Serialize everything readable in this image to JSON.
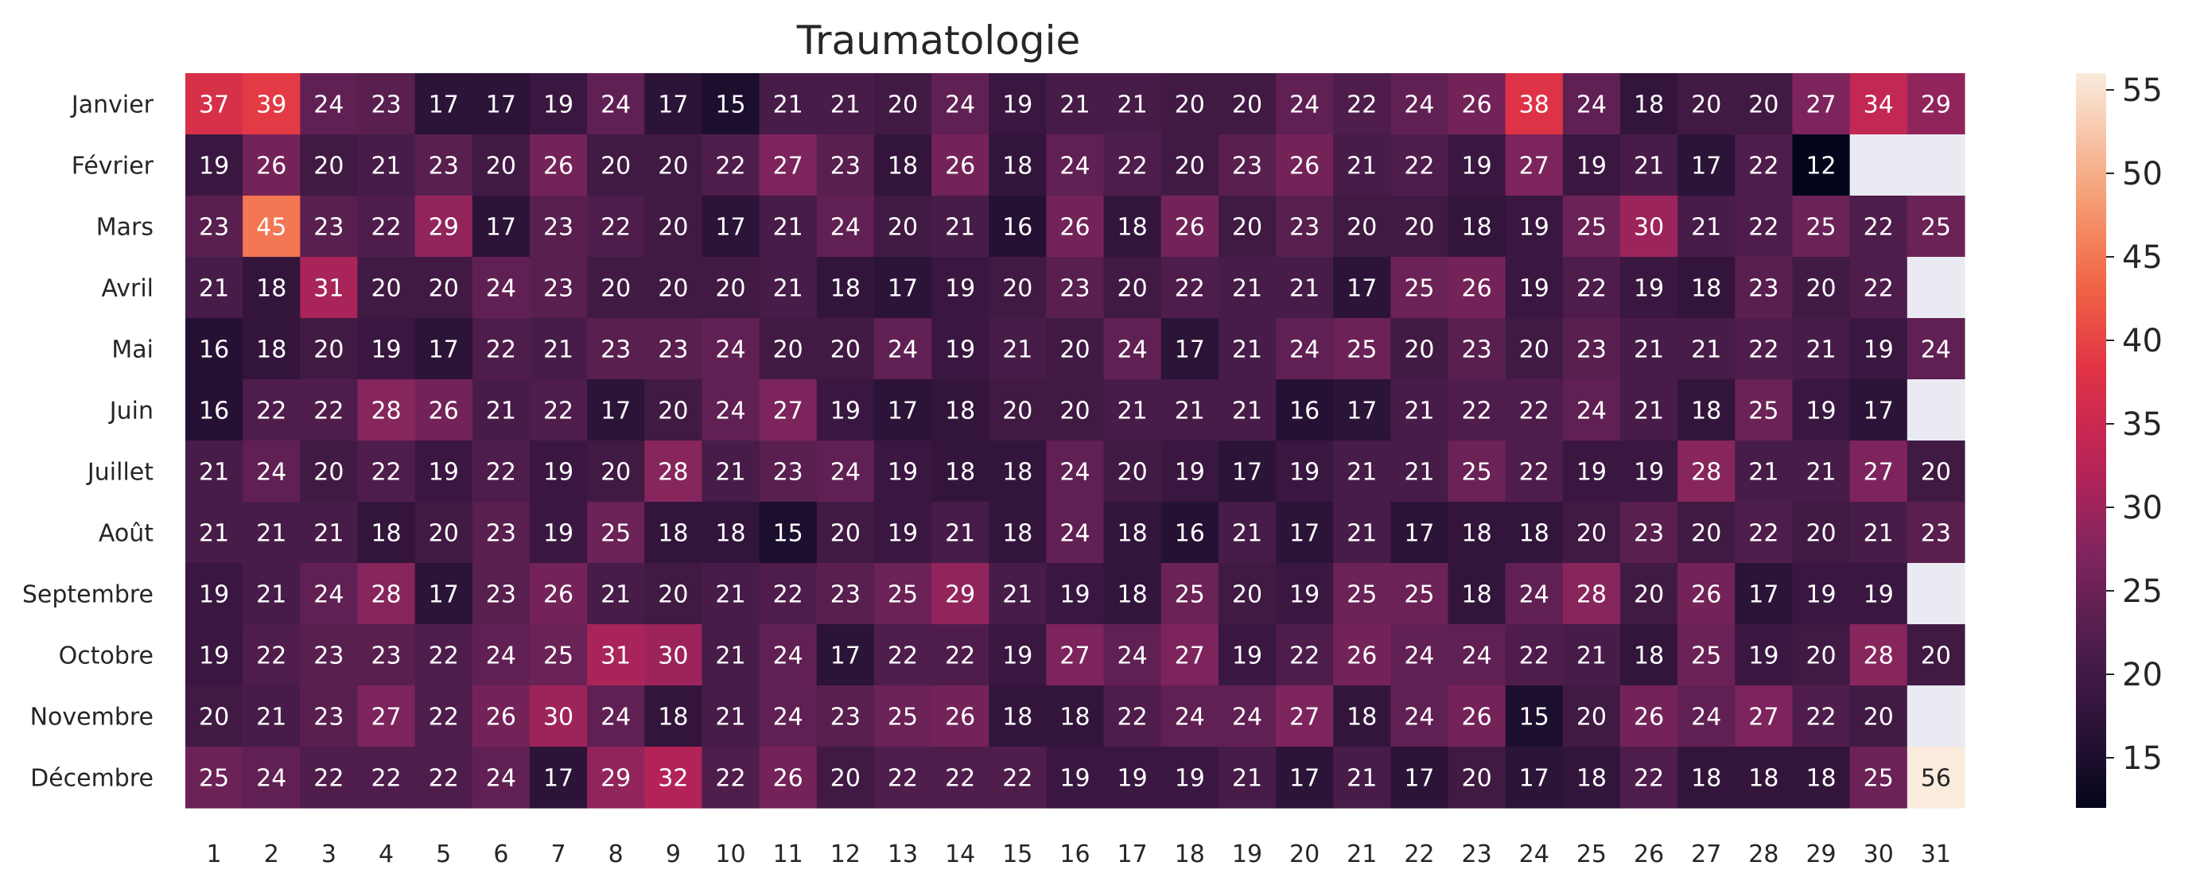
{
  "chart_data": {
    "type": "heatmap",
    "title": "Traumatologie",
    "rows": [
      "Janvier",
      "Février",
      "Mars",
      "Avril",
      "Mai",
      "Juin",
      "Juillet",
      "Août",
      "Septembre",
      "Octobre",
      "Novembre",
      "Décembre"
    ],
    "columns": [
      "1",
      "2",
      "3",
      "4",
      "5",
      "6",
      "7",
      "8",
      "9",
      "10",
      "11",
      "12",
      "13",
      "14",
      "15",
      "16",
      "17",
      "18",
      "19",
      "20",
      "21",
      "22",
      "23",
      "24",
      "25",
      "26",
      "27",
      "28",
      "29",
      "30",
      "31"
    ],
    "values": [
      [
        37,
        39,
        24,
        23,
        17,
        17,
        19,
        24,
        17,
        15,
        21,
        21,
        20,
        24,
        19,
        21,
        21,
        20,
        20,
        24,
        22,
        24,
        26,
        38,
        24,
        18,
        20,
        20,
        27,
        34,
        29
      ],
      [
        19,
        26,
        20,
        21,
        23,
        20,
        26,
        20,
        20,
        22,
        27,
        23,
        18,
        26,
        18,
        24,
        22,
        20,
        23,
        26,
        21,
        22,
        19,
        27,
        19,
        21,
        17,
        22,
        12,
        null,
        null
      ],
      [
        23,
        45,
        23,
        22,
        29,
        17,
        23,
        22,
        20,
        17,
        21,
        24,
        20,
        21,
        16,
        26,
        18,
        26,
        20,
        23,
        20,
        20,
        18,
        19,
        25,
        30,
        21,
        22,
        25,
        22,
        25
      ],
      [
        21,
        18,
        31,
        20,
        20,
        24,
        23,
        20,
        20,
        20,
        21,
        18,
        17,
        19,
        20,
        23,
        20,
        22,
        21,
        21,
        17,
        25,
        26,
        19,
        22,
        19,
        18,
        23,
        20,
        22,
        null
      ],
      [
        16,
        18,
        20,
        19,
        17,
        22,
        21,
        23,
        23,
        24,
        20,
        20,
        24,
        19,
        21,
        20,
        24,
        17,
        21,
        24,
        25,
        20,
        23,
        20,
        23,
        21,
        21,
        22,
        21,
        19,
        24
      ],
      [
        16,
        22,
        22,
        28,
        26,
        21,
        22,
        17,
        20,
        24,
        27,
        19,
        17,
        18,
        20,
        20,
        21,
        21,
        21,
        16,
        17,
        21,
        22,
        22,
        24,
        21,
        18,
        25,
        19,
        17,
        null
      ],
      [
        21,
        24,
        20,
        22,
        19,
        22,
        19,
        20,
        28,
        21,
        23,
        24,
        19,
        18,
        18,
        24,
        20,
        19,
        17,
        19,
        21,
        21,
        25,
        22,
        19,
        19,
        28,
        21,
        21,
        27,
        20
      ],
      [
        21,
        21,
        21,
        18,
        20,
        23,
        19,
        25,
        18,
        18,
        15,
        20,
        19,
        21,
        18,
        24,
        18,
        16,
        21,
        17,
        21,
        17,
        18,
        18,
        20,
        23,
        20,
        22,
        20,
        21,
        23
      ],
      [
        19,
        21,
        24,
        28,
        17,
        23,
        26,
        21,
        20,
        21,
        22,
        23,
        25,
        29,
        21,
        19,
        18,
        25,
        20,
        19,
        25,
        25,
        18,
        24,
        28,
        20,
        26,
        17,
        19,
        19,
        null
      ],
      [
        19,
        22,
        23,
        23,
        22,
        24,
        25,
        31,
        30,
        21,
        24,
        17,
        22,
        22,
        19,
        27,
        24,
        27,
        19,
        22,
        26,
        24,
        24,
        22,
        21,
        18,
        25,
        19,
        20,
        28,
        20
      ],
      [
        20,
        21,
        23,
        27,
        22,
        26,
        30,
        24,
        18,
        21,
        24,
        23,
        25,
        26,
        18,
        18,
        22,
        24,
        24,
        27,
        18,
        24,
        26,
        15,
        20,
        26,
        24,
        27,
        22,
        20,
        null
      ],
      [
        25,
        24,
        22,
        22,
        22,
        24,
        17,
        29,
        32,
        22,
        26,
        20,
        22,
        22,
        22,
        19,
        19,
        19,
        21,
        17,
        21,
        17,
        20,
        17,
        18,
        22,
        18,
        18,
        18,
        25,
        56
      ]
    ],
    "colorscale": "rocket",
    "vmin": 12,
    "vmax": 56,
    "missing_color": "#eaeaf2",
    "colorbar_ticks": [
      15,
      20,
      25,
      30,
      35,
      40,
      45,
      50,
      55
    ]
  }
}
